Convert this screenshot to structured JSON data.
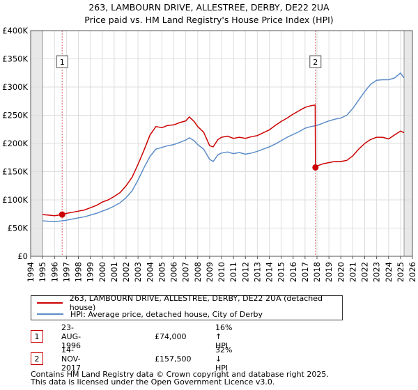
{
  "chart_data": {
    "type": "line",
    "title": "263, LAMBOURN DRIVE, ALLESTREE, DERBY, DE22 2UA",
    "subtitle": "Price paid vs. HM Land Registry's House Price Index (HPI)",
    "ylim": [
      0,
      400000
    ],
    "xlim": [
      1994,
      2026
    ],
    "y_ticks": [
      0,
      50000,
      100000,
      150000,
      200000,
      250000,
      300000,
      350000,
      400000
    ],
    "y_tick_labels": [
      "£0",
      "£50K",
      "£100K",
      "£150K",
      "£200K",
      "£250K",
      "£300K",
      "£350K",
      "£400K"
    ],
    "x_tick_labels": [
      "1994",
      "1995",
      "1996",
      "1997",
      "1998",
      "1999",
      "2000",
      "2001",
      "2002",
      "2003",
      "2004",
      "2005",
      "2006",
      "2007",
      "2008",
      "2009",
      "2010",
      "2011",
      "2012",
      "2013",
      "2014",
      "2015",
      "2016",
      "2017",
      "2018",
      "2019",
      "2020",
      "2021",
      "2022",
      "2023",
      "2024",
      "2025",
      "2026"
    ],
    "data_start": 1995.0,
    "data_end": 2025.3,
    "series": [
      {
        "name": "263, LAMBOURN DRIVE, ALLESTREE, DERBY, DE22 2UA (detached house)",
        "color": "#cc0000",
        "x": [
          1995.0,
          1995.5,
          1996.0,
          1996.5,
          1996.64,
          1997.0,
          1997.5,
          1998.0,
          1998.5,
          1999.0,
          1999.5,
          2000.0,
          2000.5,
          2001.0,
          2001.5,
          2002.0,
          2002.5,
          2003.0,
          2003.5,
          2004.0,
          2004.5,
          2005.0,
          2005.5,
          2006.0,
          2006.5,
          2007.0,
          2007.3,
          2007.7,
          2008.0,
          2008.5,
          2009.0,
          2009.3,
          2009.7,
          2010.0,
          2010.5,
          2011.0,
          2011.5,
          2012.0,
          2012.5,
          2013.0,
          2013.5,
          2014.0,
          2014.5,
          2015.0,
          2015.5,
          2016.0,
          2016.5,
          2017.0,
          2017.5,
          2017.85,
          2017.87,
          2018.0,
          2018.5,
          2019.0,
          2019.5,
          2020.0,
          2020.5,
          2021.0,
          2021.5,
          2022.0,
          2022.5,
          2023.0,
          2023.5,
          2024.0,
          2024.5,
          2025.0,
          2025.3
        ],
        "y": [
          74000,
          73000,
          72000,
          73500,
          74000,
          76000,
          78000,
          80000,
          82000,
          86000,
          90000,
          96000,
          100000,
          106000,
          113000,
          125000,
          140000,
          163000,
          188000,
          215000,
          230000,
          228000,
          232000,
          233000,
          237000,
          240000,
          247000,
          239000,
          230000,
          220000,
          196000,
          194000,
          207000,
          211000,
          213000,
          209000,
          211000,
          209000,
          212000,
          214000,
          219000,
          224000,
          232000,
          239000,
          245000,
          252000,
          258000,
          264000,
          267000,
          268000,
          157500,
          160000,
          164000,
          166000,
          168000,
          168000,
          170000,
          178000,
          190000,
          200000,
          207000,
          211000,
          211000,
          208000,
          215000,
          222000,
          219000
        ]
      },
      {
        "name": "HPI: Average price, detached house, City of Derby",
        "color": "#5b8cc8",
        "x": [
          1995.0,
          1995.5,
          1996.0,
          1996.5,
          1997.0,
          1997.5,
          1998.0,
          1998.5,
          1999.0,
          1999.5,
          2000.0,
          2000.5,
          2001.0,
          2001.5,
          2002.0,
          2002.5,
          2003.0,
          2003.5,
          2004.0,
          2004.5,
          2005.0,
          2005.5,
          2006.0,
          2006.5,
          2007.0,
          2007.3,
          2007.7,
          2008.0,
          2008.5,
          2009.0,
          2009.3,
          2009.7,
          2010.0,
          2010.5,
          2011.0,
          2011.5,
          2012.0,
          2012.5,
          2013.0,
          2013.5,
          2014.0,
          2014.5,
          2015.0,
          2015.5,
          2016.0,
          2016.5,
          2017.0,
          2017.5,
          2018.0,
          2018.5,
          2019.0,
          2019.5,
          2020.0,
          2020.5,
          2021.0,
          2021.5,
          2022.0,
          2022.5,
          2023.0,
          2023.5,
          2024.0,
          2024.5,
          2025.0,
          2025.3
        ],
        "y": [
          63000,
          62000,
          61500,
          62500,
          64000,
          66000,
          68000,
          70000,
          73000,
          76000,
          80000,
          84000,
          89000,
          95000,
          104000,
          116000,
          135000,
          157000,
          177000,
          190000,
          193000,
          196000,
          198000,
          202000,
          206000,
          210000,
          205000,
          198000,
          190000,
          172000,
          168000,
          180000,
          183000,
          185000,
          182000,
          184000,
          181000,
          183000,
          186000,
          190000,
          194000,
          199000,
          205000,
          211000,
          216000,
          221000,
          227000,
          230000,
          232000,
          236000,
          240000,
          243000,
          245000,
          250000,
          262000,
          277000,
          292000,
          305000,
          312000,
          313000,
          313000,
          316000,
          325000,
          316000
        ]
      }
    ],
    "annotations": [
      {
        "label": "1",
        "x": 1996.64
      },
      {
        "label": "2",
        "x": 2017.87
      }
    ],
    "sale_points": [
      {
        "x": 1996.64,
        "y": 74000
      },
      {
        "x": 2017.87,
        "y": 157500
      }
    ]
  },
  "legend": {
    "items": [
      {
        "label": "263, LAMBOURN DRIVE, ALLESTREE, DERBY, DE22 2UA (detached house)",
        "color": "#cc0000"
      },
      {
        "label": "HPI: Average price, detached house, City of Derby",
        "color": "#5b8cc8"
      }
    ]
  },
  "transactions": [
    {
      "num": "1",
      "date": "23-AUG-1996",
      "price": "£74,000",
      "hpi": "16% ↑ HPI"
    },
    {
      "num": "2",
      "date": "14-NOV-2017",
      "price": "£157,500",
      "hpi": "32% ↓ HPI"
    }
  ],
  "footer": {
    "line1": "Contains HM Land Registry data © Crown copyright and database right 2025.",
    "line2": "This data is licensed under the Open Government Licence v3.0."
  }
}
